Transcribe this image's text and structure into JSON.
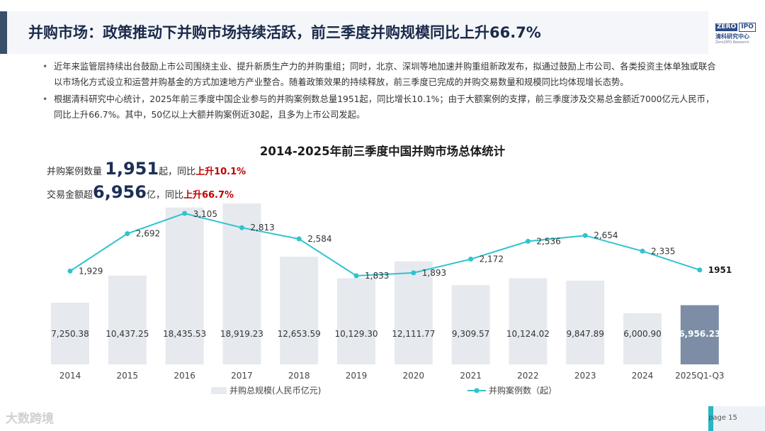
{
  "header": {
    "title": "并购市场：政策推动下并购市场持续活跃，前三季度并购规模同比上升66.7%",
    "logo_zero": "ZERO",
    "logo_ipo": "IPO",
    "logo_cn": "清科研究中心",
    "logo_en": "Zero2IPO Research"
  },
  "bullets": [
    "近年来监管层持续出台鼓励上市公司围绕主业、提升新质生产力的并购重组；同时，北京、深圳等地加速并购重组新政发布，拟通过鼓励上市公司、各类投资主体单独或联合以市场化方式设立和运营并购基金的方式加速地方产业整合。随着政策效果的持续释放，前三季度已完成的并购交易数量和规模同比均体现增长态势。",
    "根据清科研究中心统计，2025年前三季度中国企业参与的并购案例数总量1951起，同比增长10.1%；由于大额案例的支撑，前三季度涉及交易总金额近7000亿元人民币，同比上升66.7%。其中，50亿以上大额并购案例近30起，且多为上市公司发起。"
  ],
  "stats": {
    "count_label": "并购案例数量",
    "count_value": "1,951",
    "count_unit": "起，同比",
    "count_change": "上升10.1%",
    "amount_label": "交易金额超",
    "amount_value": "6,956",
    "amount_unit": "亿，同比",
    "amount_change": "上升66.7%"
  },
  "chart_data": {
    "type": "bar+line",
    "title": "2014-2025年前三季度中国并购市场总体统计",
    "categories": [
      "2014",
      "2015",
      "2016",
      "2017",
      "2018",
      "2019",
      "2020",
      "2021",
      "2022",
      "2023",
      "2024",
      "2025Q1-Q3"
    ],
    "series": [
      {
        "name": "并购总规模(人民币亿元)",
        "type": "bar",
        "values": [
          7250.38,
          10437.25,
          18435.53,
          18919.23,
          12653.59,
          10129.3,
          12111.77,
          9309.57,
          10124.02,
          9847.89,
          6000.9,
          6956.23
        ],
        "labels": [
          "7,250.38",
          "10,437.25",
          "18,435.53",
          "18,919.23",
          "12,653.59",
          "10,129.30",
          "12,111.77",
          "9,309.57",
          "10,124.02",
          "9,847.89",
          "6,000.90",
          "6,956.23"
        ]
      },
      {
        "name": "并购案例数（起）",
        "type": "line",
        "values": [
          1929,
          2692,
          3105,
          2813,
          2584,
          1833,
          1893,
          2172,
          2536,
          2654,
          2335,
          1951
        ],
        "labels": [
          "1,929",
          "2,692",
          "3,105",
          "2,813",
          "2,584",
          "1,833",
          "1,893",
          "2,172",
          "2,536",
          "2,654",
          "2,335",
          "1951"
        ]
      }
    ],
    "colors": {
      "bar": "#e6eaef",
      "bar_highlight": "#7c8da5",
      "line": "#2ec3cf"
    },
    "legend_position": "bottom",
    "grid": false
  },
  "footer": {
    "page": "page  15",
    "watermark": "大数跨境"
  }
}
